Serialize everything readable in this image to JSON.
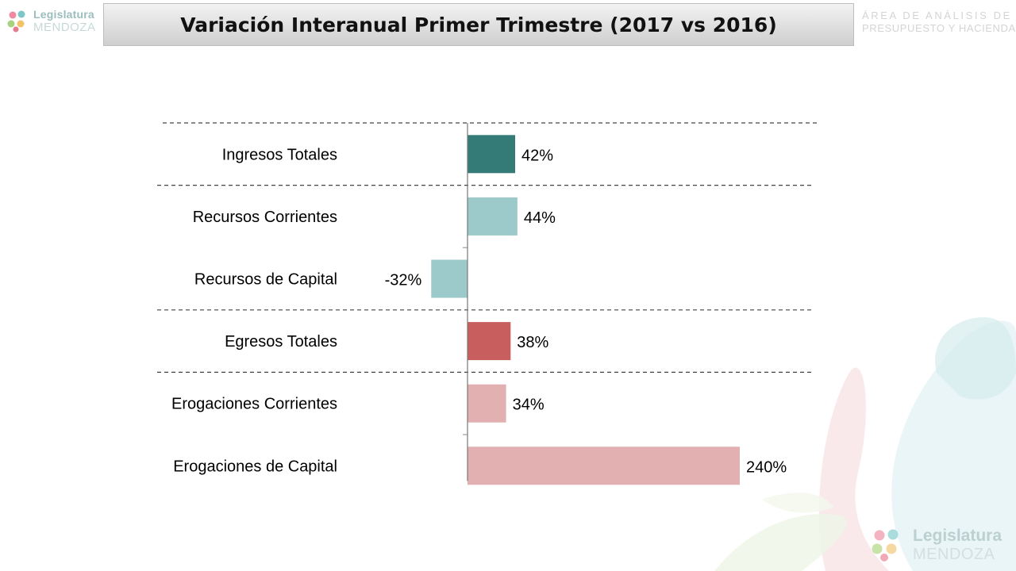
{
  "slide": {
    "title": "Variación Interanual Primer Trimestre (2017 vs 2016)",
    "area_line1": "ÁREA DE ANÁLISIS DE",
    "area_line2": "PRESUPUESTO Y HACIENDA",
    "logo_top_line1": "Legislatura",
    "logo_top_line2": "MENDOZA",
    "logo_bottom_line1": "Legislatura",
    "logo_bottom_line2": "MENDOZA"
  },
  "chart_data": {
    "type": "bar",
    "orientation": "horizontal",
    "categories": [
      "Ingresos Totales",
      "Recursos Corrientes",
      "Recursos de Capital",
      "Egresos Totales",
      "Erogaciones Corrientes",
      "Erogaciones de Capital"
    ],
    "values": [
      42,
      44,
      -32,
      38,
      34,
      240
    ],
    "value_labels": [
      "42%",
      "44%",
      "-32%",
      "38%",
      "34%",
      "240%"
    ],
    "colors": [
      "#347b77",
      "#9ccaca",
      "#9ccaca",
      "#c85e5e",
      "#e2b0b0",
      "#e2b0b0"
    ],
    "group_separators_after": [
      0,
      2,
      3
    ],
    "xlim": [
      -32,
      240
    ]
  }
}
